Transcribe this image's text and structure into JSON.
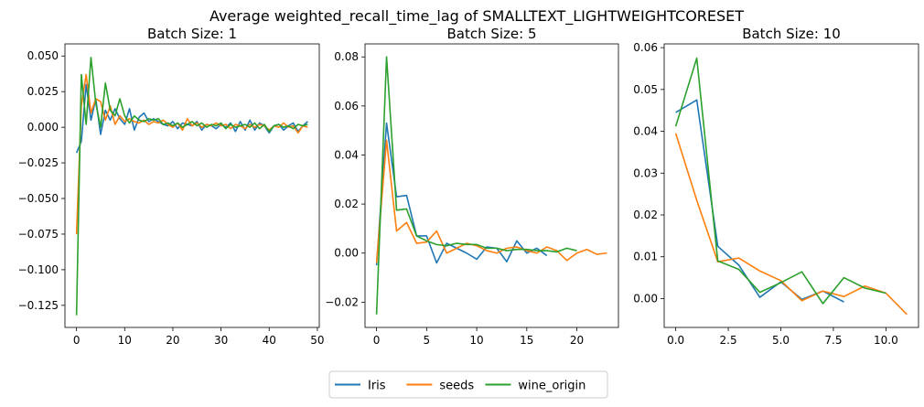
{
  "figure": {
    "title": "Average weighted_recall_time_lag of SMALLTEXT_LIGHTWEIGHTCORESET"
  },
  "legend": {
    "entries": [
      {
        "label": "Iris",
        "color": "#1f77b4"
      },
      {
        "label": "seeds",
        "color": "#ff7f0e"
      },
      {
        "label": "wine_origin",
        "color": "#2ca02c"
      }
    ],
    "placement": "bottom-center, horizontal"
  },
  "chart_data": [
    {
      "type": "line",
      "title": "Batch Size: 1",
      "xlabel": "",
      "ylabel": "",
      "xlim": [
        -2.4,
        50.4
      ],
      "ylim": [
        -0.1405,
        0.0585
      ],
      "xticks": [
        0,
        10,
        20,
        30,
        40,
        50
      ],
      "yticks": [
        -0.125,
        -0.1,
        -0.075,
        -0.05,
        -0.025,
        0.0,
        0.025,
        0.05
      ],
      "ytick_labels": [
        "−0.125",
        "−0.100",
        "−0.075",
        "−0.050",
        "−0.025",
        "0.000",
        "0.025",
        "0.050"
      ],
      "grid": false,
      "series": [
        {
          "name": "Iris",
          "color": "#1f77b4",
          "x": [
            0,
            1,
            2,
            3,
            4,
            5,
            6,
            7,
            8,
            9,
            10,
            11,
            12,
            13,
            14,
            15,
            16,
            17,
            18,
            19,
            20,
            21,
            22,
            23,
            24,
            25,
            26,
            27,
            28,
            29,
            30,
            31,
            32,
            33,
            34,
            35,
            36,
            37,
            38,
            39,
            40,
            41,
            42,
            43,
            44,
            45,
            46,
            47,
            48
          ],
          "y": [
            -0.018,
            -0.01,
            0.03,
            0.005,
            0.02,
            -0.005,
            0.012,
            0.005,
            0.013,
            0.006,
            0.002,
            0.013,
            -0.002,
            0.007,
            0.01,
            0.004,
            0.006,
            0.004,
            0.002,
            0.001,
            0.004,
            -0.001,
            0.003,
            0.002,
            0.001,
            0.004,
            -0.002,
            0.002,
            0.001,
            -0.001,
            0.002,
            0.0,
            0.003,
            -0.003,
            0.004,
            -0.002,
            0.005,
            -0.002,
            0.003,
            0.001,
            -0.004,
            0.001,
            0.002,
            -0.002,
            0.001,
            0.003,
            -0.003,
            0.001,
            0.004
          ]
        },
        {
          "name": "seeds",
          "color": "#ff7f0e",
          "x": [
            0,
            1,
            2,
            3,
            4,
            5,
            6,
            7,
            8,
            9,
            10,
            11,
            12,
            13,
            14,
            15,
            16,
            17,
            18,
            19,
            20,
            21,
            22,
            23,
            24,
            25,
            26,
            27,
            28,
            29,
            30,
            31,
            32,
            33,
            34,
            35,
            36,
            37,
            38,
            39,
            40,
            41,
            42,
            43,
            44,
            45,
            46,
            47,
            48
          ],
          "y": [
            -0.075,
            0.015,
            0.037,
            0.01,
            0.02,
            0.018,
            0.005,
            0.015,
            0.002,
            0.008,
            0.004,
            0.006,
            0.004,
            0.003,
            0.005,
            0.002,
            0.004,
            0.003,
            0.005,
            0.002,
            0.0,
            0.003,
            -0.002,
            0.006,
            0.001,
            0.003,
            0.0,
            0.002,
            0.001,
            0.003,
            0.001,
            0.002,
            -0.001,
            0.002,
            0.001,
            -0.001,
            0.002,
            0.0,
            0.002,
            0.001,
            -0.002,
            0.001,
            0.0,
            0.003,
            0.0,
            0.001,
            -0.004,
            0.001,
            0.0
          ]
        },
        {
          "name": "wine_origin",
          "color": "#2ca02c",
          "x": [
            0,
            1,
            2,
            3,
            4,
            5,
            6,
            7,
            8,
            9,
            10,
            11,
            12,
            13,
            14,
            15,
            16,
            17,
            18,
            19,
            20,
            21,
            22,
            23,
            24,
            25,
            26,
            27,
            28,
            29,
            30,
            31,
            32,
            33,
            34,
            35,
            36,
            37,
            38,
            39,
            40,
            41,
            42,
            43,
            44,
            45,
            46,
            47,
            48
          ],
          "y": [
            -0.132,
            0.037,
            0.002,
            0.049,
            0.017,
            0.0,
            0.031,
            0.012,
            0.008,
            0.02,
            0.008,
            0.003,
            0.008,
            0.005,
            0.004,
            0.006,
            0.005,
            0.006,
            0.002,
            0.003,
            0.001,
            0.003,
            0.0,
            0.002,
            0.004,
            0.001,
            0.003,
            0.0,
            0.002,
            0.001,
            0.003,
            -0.001,
            0.002,
            0.0,
            0.001,
            0.002,
            0.0,
            0.003,
            -0.001,
            0.002,
            -0.003,
            0.001,
            0.002,
            0.0,
            0.001,
            -0.001,
            0.002,
            0.001,
            0.002
          ]
        }
      ]
    },
    {
      "type": "line",
      "title": "Batch Size: 5",
      "xlabel": "",
      "ylabel": "",
      "xlim": [
        -1.15,
        24.15
      ],
      "ylim": [
        -0.0303,
        0.0853
      ],
      "xticks": [
        0,
        5,
        10,
        15,
        20
      ],
      "yticks": [
        -0.02,
        0.0,
        0.02,
        0.04,
        0.06,
        0.08
      ],
      "ytick_labels": [
        "−0.02",
        "0.00",
        "0.02",
        "0.04",
        "0.06",
        "0.08"
      ],
      "grid": false,
      "series": [
        {
          "name": "Iris",
          "color": "#1f77b4",
          "x": [
            0,
            1,
            2,
            3,
            4,
            5,
            6,
            7,
            8,
            9,
            10,
            11,
            12,
            13,
            14,
            15,
            16,
            17
          ],
          "y": [
            -0.005,
            0.053,
            0.023,
            0.0235,
            0.007,
            0.007,
            -0.004,
            0.004,
            0.002,
            0.0,
            -0.0025,
            0.0025,
            0.002,
            -0.0035,
            0.005,
            0.0,
            0.002,
            -0.001
          ]
        },
        {
          "name": "seeds",
          "color": "#ff7f0e",
          "x": [
            0,
            1,
            2,
            3,
            4,
            5,
            6,
            7,
            8,
            9,
            10,
            11,
            12,
            13,
            14,
            15,
            16,
            17,
            18,
            19,
            20,
            21,
            22,
            23
          ],
          "y": [
            -0.004,
            0.046,
            0.009,
            0.0125,
            0.004,
            0.0045,
            0.009,
            0.0,
            0.002,
            0.004,
            0.003,
            0.001,
            0.0,
            0.002,
            0.0025,
            0.001,
            0.0,
            0.0025,
            0.001,
            -0.003,
            0.0,
            0.0015,
            -0.0005,
            0.0
          ]
        },
        {
          "name": "wine_origin",
          "color": "#2ca02c",
          "x": [
            0,
            1,
            2,
            3,
            4,
            5,
            6,
            7,
            8,
            9,
            10,
            11,
            12,
            13,
            14,
            15,
            16,
            17,
            18,
            19,
            20
          ],
          "y": [
            -0.025,
            0.08,
            0.0175,
            0.018,
            0.007,
            0.005,
            0.0035,
            0.003,
            0.004,
            0.0035,
            0.0035,
            0.002,
            0.002,
            0.001,
            0.0015,
            0.0015,
            0.001,
            0.001,
            0.0005,
            0.002,
            0.001
          ]
        }
      ]
    },
    {
      "type": "line",
      "title": "Batch Size: 10",
      "xlabel": "",
      "ylabel": "",
      "xlim": [
        -0.55,
        11.55
      ],
      "ylim": [
        -0.0069,
        0.0609
      ],
      "xticks": [
        0,
        2.5,
        5,
        7.5,
        10
      ],
      "xtick_labels": [
        "0.0",
        "2.5",
        "5.0",
        "7.5",
        "10.0"
      ],
      "yticks": [
        0.0,
        0.01,
        0.02,
        0.03,
        0.04,
        0.05,
        0.06
      ],
      "ytick_labels": [
        "0.00",
        "0.01",
        "0.02",
        "0.03",
        "0.04",
        "0.05",
        "0.06"
      ],
      "grid": false,
      "series": [
        {
          "name": "Iris",
          "color": "#1f77b4",
          "x": [
            0,
            1,
            2,
            3,
            4,
            5,
            6,
            7,
            8
          ],
          "y": [
            0.0445,
            0.0475,
            0.0125,
            0.008,
            0.0003,
            0.004,
            -0.0002,
            0.0018,
            -0.0008
          ]
        },
        {
          "name": "seeds",
          "color": "#ff7f0e",
          "x": [
            0,
            1,
            2,
            3,
            4,
            5,
            6,
            7,
            8,
            9,
            10,
            11
          ],
          "y": [
            0.0395,
            0.0235,
            0.0088,
            0.0097,
            0.0066,
            0.0043,
            -0.0005,
            0.0018,
            0.0005,
            0.003,
            0.0013,
            -0.0038
          ]
        },
        {
          "name": "wine_origin",
          "color": "#2ca02c",
          "x": [
            0,
            1,
            2,
            3,
            4,
            5,
            6,
            7,
            8,
            9,
            10
          ],
          "y": [
            0.0412,
            0.0575,
            0.009,
            0.007,
            0.0015,
            0.0038,
            0.0064,
            -0.0012,
            0.005,
            0.0025,
            0.0013
          ]
        }
      ]
    }
  ]
}
